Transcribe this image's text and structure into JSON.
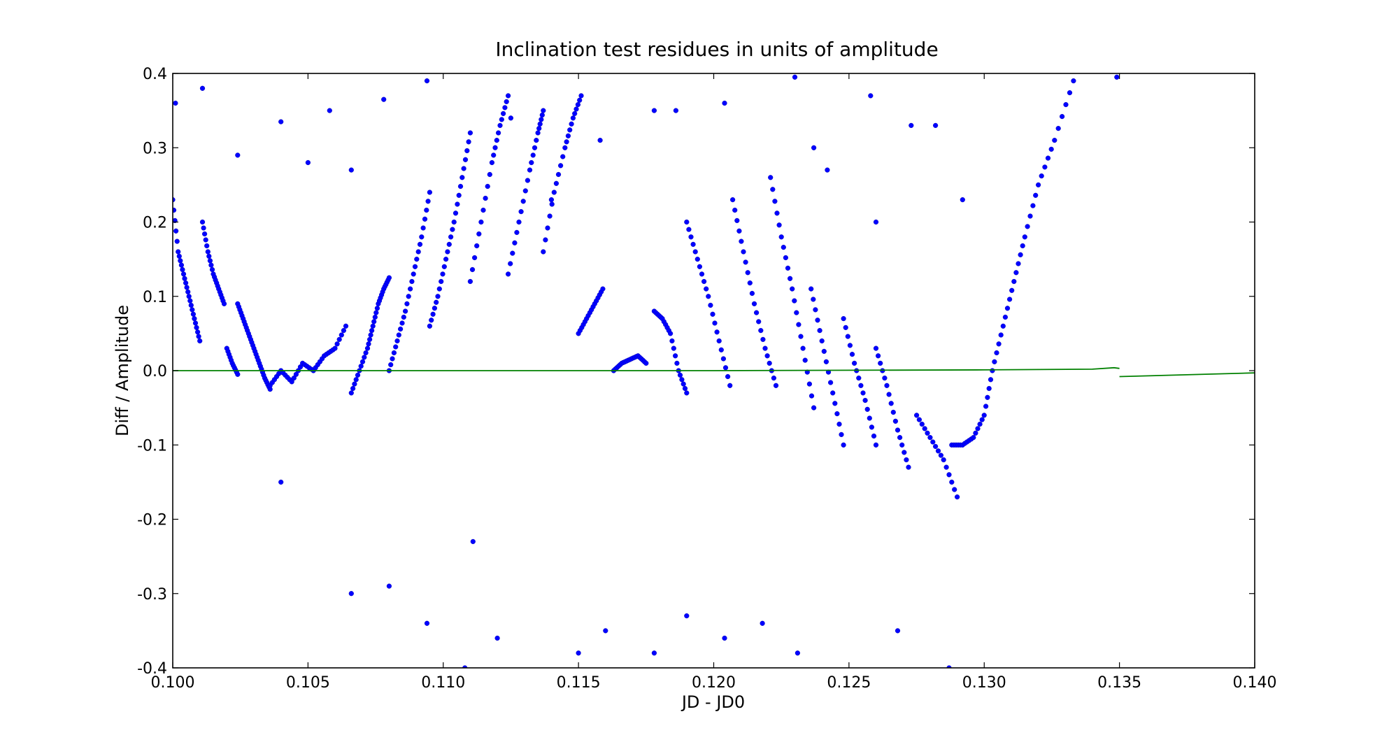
{
  "chart_data": {
    "type": "scatter",
    "title": "Inclination test residues in units of amplitude",
    "xlabel": "JD - JD0",
    "ylabel": "Diff / Amplitude",
    "xlim": [
      0.1,
      0.14
    ],
    "ylim": [
      -0.4,
      0.4
    ],
    "x_ticks": [
      "0.100",
      "0.105",
      "0.110",
      "0.115",
      "0.120",
      "0.125",
      "0.130",
      "0.135",
      "0.140"
    ],
    "y_ticks": [
      "0.4",
      "0.3",
      "0.2",
      "0.1",
      "0.0",
      "-0.1",
      "-0.2",
      "-0.3",
      "-0.4"
    ],
    "grid": false,
    "legend": "none",
    "colors": {
      "scatter": "#0000ff",
      "line": "#008000",
      "axes": "#000000",
      "background": "#ffffff"
    },
    "series": [
      {
        "kind": "scatter",
        "segments": [
          {
            "points": [
              [
                0.1,
                0.23
              ],
              [
                0.1002,
                0.16
              ],
              [
                0.1004,
                0.13
              ],
              [
                0.1006,
                0.1
              ],
              [
                0.1008,
                0.07
              ],
              [
                0.101,
                0.04
              ]
            ]
          },
          {
            "points": [
              [
                0.1011,
                0.2
              ],
              [
                0.1013,
                0.16
              ],
              [
                0.1015,
                0.13
              ],
              [
                0.1017,
                0.11
              ],
              [
                0.1019,
                0.09
              ]
            ]
          },
          {
            "points": [
              [
                0.102,
                0.03
              ],
              [
                0.1022,
                0.01
              ],
              [
                0.1024,
                -0.005
              ]
            ]
          },
          {
            "points": [
              [
                0.1024,
                0.09
              ],
              [
                0.1026,
                0.07
              ],
              [
                0.1028,
                0.05
              ],
              [
                0.103,
                0.03
              ],
              [
                0.1032,
                0.01
              ],
              [
                0.1034,
                -0.01
              ],
              [
                0.1036,
                -0.025
              ]
            ]
          },
          {
            "points": [
              [
                0.1036,
                -0.02
              ],
              [
                0.104,
                0.0
              ],
              [
                0.1044,
                -0.015
              ],
              [
                0.1048,
                0.01
              ],
              [
                0.1052,
                0.0
              ],
              [
                0.1056,
                0.02
              ],
              [
                0.106,
                0.03
              ],
              [
                0.1064,
                0.06
              ]
            ]
          },
          {
            "points": [
              [
                0.1066,
                -0.03
              ],
              [
                0.1069,
                0.0
              ],
              [
                0.1072,
                0.03
              ],
              [
                0.1074,
                0.06
              ],
              [
                0.1076,
                0.09
              ],
              [
                0.1078,
                0.11
              ],
              [
                0.108,
                0.125
              ]
            ]
          },
          {
            "points": [
              [
                0.108,
                0.0
              ],
              [
                0.1083,
                0.04
              ],
              [
                0.1086,
                0.08
              ],
              [
                0.1089,
                0.13
              ],
              [
                0.1092,
                0.18
              ],
              [
                0.1095,
                0.24
              ]
            ]
          },
          {
            "points": [
              [
                0.1095,
                0.06
              ],
              [
                0.1098,
                0.1
              ],
              [
                0.1101,
                0.15
              ],
              [
                0.1104,
                0.2
              ],
              [
                0.1107,
                0.26
              ],
              [
                0.111,
                0.32
              ]
            ]
          },
          {
            "points": [
              [
                0.111,
                0.12
              ],
              [
                0.1114,
                0.2
              ],
              [
                0.1118,
                0.28
              ],
              [
                0.1121,
                0.33
              ],
              [
                0.1124,
                0.37
              ]
            ]
          },
          {
            "points": [
              [
                0.1124,
                0.13
              ],
              [
                0.1128,
                0.2
              ],
              [
                0.1132,
                0.27
              ],
              [
                0.1135,
                0.32
              ],
              [
                0.1137,
                0.35
              ]
            ]
          },
          {
            "points": [
              [
                0.1137,
                0.16
              ],
              [
                0.1141,
                0.24
              ],
              [
                0.1145,
                0.3
              ],
              [
                0.1148,
                0.34
              ],
              [
                0.1151,
                0.37
              ]
            ]
          },
          {
            "points": [
              [
                0.115,
                0.05
              ],
              [
                0.1153,
                0.07
              ],
              [
                0.1156,
                0.09
              ],
              [
                0.1159,
                0.11
              ]
            ]
          },
          {
            "points": [
              [
                0.1163,
                0.0
              ],
              [
                0.1166,
                0.01
              ],
              [
                0.1169,
                0.015
              ],
              [
                0.1172,
                0.02
              ],
              [
                0.1175,
                0.01
              ]
            ]
          },
          {
            "points": [
              [
                0.1178,
                0.08
              ],
              [
                0.1181,
                0.07
              ],
              [
                0.1184,
                0.05
              ],
              [
                0.1187,
                0.0
              ],
              [
                0.119,
                -0.03
              ]
            ]
          },
          {
            "points": [
              [
                0.119,
                0.2
              ],
              [
                0.1194,
                0.15
              ],
              [
                0.1198,
                0.1
              ],
              [
                0.1202,
                0.04
              ],
              [
                0.1206,
                -0.02
              ]
            ]
          },
          {
            "points": [
              [
                0.1207,
                0.23
              ],
              [
                0.1211,
                0.16
              ],
              [
                0.1215,
                0.09
              ],
              [
                0.1219,
                0.03
              ],
              [
                0.1223,
                -0.02
              ]
            ]
          },
          {
            "points": [
              [
                0.1221,
                0.26
              ],
              [
                0.1225,
                0.18
              ],
              [
                0.1229,
                0.11
              ],
              [
                0.1233,
                0.03
              ],
              [
                0.1237,
                -0.05
              ]
            ]
          },
          {
            "points": [
              [
                0.1236,
                0.11
              ],
              [
                0.124,
                0.04
              ],
              [
                0.1244,
                -0.03
              ],
              [
                0.1248,
                -0.1
              ]
            ]
          },
          {
            "points": [
              [
                0.1248,
                0.07
              ],
              [
                0.1252,
                0.01
              ],
              [
                0.1256,
                -0.04
              ],
              [
                0.126,
                -0.1
              ]
            ]
          },
          {
            "points": [
              [
                0.126,
                0.03
              ],
              [
                0.1264,
                -0.02
              ],
              [
                0.1268,
                -0.08
              ],
              [
                0.1272,
                -0.13
              ]
            ]
          },
          {
            "points": [
              [
                0.1275,
                -0.06
              ],
              [
                0.128,
                -0.09
              ],
              [
                0.1285,
                -0.12
              ],
              [
                0.129,
                -0.17
              ]
            ]
          },
          {
            "points": [
              [
                0.1288,
                -0.1
              ],
              [
                0.1292,
                -0.1
              ],
              [
                0.1296,
                -0.09
              ],
              [
                0.13,
                -0.06
              ],
              [
                0.1303,
                0.0
              ],
              [
                0.1307,
                0.06
              ],
              [
                0.1311,
                0.12
              ],
              [
                0.1315,
                0.18
              ],
              [
                0.132,
                0.25
              ],
              [
                0.1326,
                0.31
              ],
              [
                0.1333,
                0.39
              ]
            ]
          }
        ],
        "outliers": [
          [
            0.1001,
            0.36
          ],
          [
            0.1011,
            0.38
          ],
          [
            0.1024,
            0.29
          ],
          [
            0.104,
            0.335
          ],
          [
            0.104,
            -0.15
          ],
          [
            0.105,
            0.28
          ],
          [
            0.1058,
            0.35
          ],
          [
            0.1066,
            0.27
          ],
          [
            0.1066,
            -0.3
          ],
          [
            0.1078,
            0.365
          ],
          [
            0.108,
            -0.29
          ],
          [
            0.1094,
            0.39
          ],
          [
            0.1094,
            -0.34
          ],
          [
            0.1108,
            -0.4
          ],
          [
            0.1111,
            -0.23
          ],
          [
            0.112,
            -0.36
          ],
          [
            0.1125,
            0.34
          ],
          [
            0.114,
            0.23
          ],
          [
            0.115,
            -0.38
          ],
          [
            0.1158,
            0.31
          ],
          [
            0.116,
            -0.35
          ],
          [
            0.1178,
            0.35
          ],
          [
            0.1178,
            -0.38
          ],
          [
            0.1186,
            0.35
          ],
          [
            0.119,
            -0.33
          ],
          [
            0.1204,
            0.36
          ],
          [
            0.1204,
            -0.36
          ],
          [
            0.1218,
            -0.34
          ],
          [
            0.123,
            0.395
          ],
          [
            0.1231,
            -0.38
          ],
          [
            0.1237,
            0.3
          ],
          [
            0.1242,
            0.27
          ],
          [
            0.1258,
            0.37
          ],
          [
            0.126,
            0.2
          ],
          [
            0.1268,
            -0.35
          ],
          [
            0.1273,
            0.33
          ],
          [
            0.1282,
            0.33
          ],
          [
            0.1287,
            -0.4
          ],
          [
            0.1292,
            0.23
          ],
          [
            0.1349,
            0.395
          ]
        ]
      },
      {
        "kind": "line",
        "segments": [
          {
            "points": [
              [
                0.1,
                0.0
              ],
              [
                0.11,
                0.0
              ],
              [
                0.12,
                0.0
              ],
              [
                0.13,
                0.001
              ],
              [
                0.134,
                0.002
              ],
              [
                0.1348,
                0.004
              ],
              [
                0.135,
                0.003
              ]
            ]
          },
          {
            "points": [
              [
                0.135,
                -0.008
              ],
              [
                0.14,
                -0.003
              ]
            ]
          }
        ]
      }
    ]
  }
}
